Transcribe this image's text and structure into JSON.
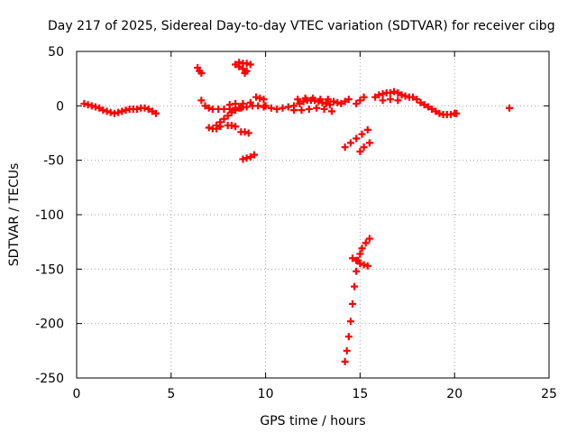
{
  "chart_data": {
    "type": "scatter",
    "title": "Day 217 of 2025, Sidereal Day-to-day VTEC variation (SDTVAR) for receiver cibg",
    "xlabel": "GPS time / hours",
    "ylabel": "SDTVAR / TECUs",
    "xlim": [
      0,
      25
    ],
    "ylim": [
      -250,
      50
    ],
    "xticks": [
      0,
      5,
      10,
      15,
      20,
      25
    ],
    "yticks": [
      -250,
      -200,
      -150,
      -100,
      -50,
      0,
      50
    ],
    "grid": true,
    "marker": "+",
    "color": "#ff0000",
    "series": [
      {
        "name": "SDTVAR",
        "points": [
          [
            0.4,
            2
          ],
          [
            0.6,
            1
          ],
          [
            0.8,
            0
          ],
          [
            1.0,
            -1
          ],
          [
            1.2,
            -2
          ],
          [
            1.4,
            -4
          ],
          [
            1.6,
            -5
          ],
          [
            1.8,
            -6
          ],
          [
            2.0,
            -7
          ],
          [
            2.2,
            -6
          ],
          [
            2.4,
            -5
          ],
          [
            2.6,
            -4
          ],
          [
            2.8,
            -3
          ],
          [
            3.0,
            -3
          ],
          [
            3.2,
            -3
          ],
          [
            3.4,
            -2
          ],
          [
            3.6,
            -2
          ],
          [
            3.8,
            -3
          ],
          [
            4.0,
            -5
          ],
          [
            4.2,
            -7
          ],
          [
            6.4,
            35
          ],
          [
            6.5,
            32
          ],
          [
            6.6,
            30
          ],
          [
            6.6,
            5
          ],
          [
            6.8,
            0
          ],
          [
            7.0,
            -2
          ],
          [
            7.2,
            -3
          ],
          [
            7.5,
            -3
          ],
          [
            7.8,
            -3
          ],
          [
            8.1,
            -3
          ],
          [
            8.4,
            -2
          ],
          [
            8.7,
            -2
          ],
          [
            9.0,
            -1
          ],
          [
            9.3,
            0
          ],
          [
            9.6,
            0
          ],
          [
            9.9,
            -1
          ],
          [
            7.0,
            -20
          ],
          [
            7.2,
            -21
          ],
          [
            7.4,
            -21
          ],
          [
            7.6,
            -19
          ],
          [
            7.4,
            -18
          ],
          [
            7.6,
            -15
          ],
          [
            7.8,
            -12
          ],
          [
            8.0,
            -9
          ],
          [
            8.2,
            -6
          ],
          [
            8.4,
            -4
          ],
          [
            8.6,
            -2
          ],
          [
            8.8,
            -1
          ],
          [
            8.0,
            -18
          ],
          [
            8.2,
            -18
          ],
          [
            8.4,
            -19
          ],
          [
            8.7,
            -24
          ],
          [
            8.9,
            -24
          ],
          [
            9.1,
            -25
          ],
          [
            8.4,
            38
          ],
          [
            8.6,
            36
          ],
          [
            8.8,
            34
          ],
          [
            9.0,
            32
          ],
          [
            8.6,
            40
          ],
          [
            8.8,
            39
          ],
          [
            9.0,
            39
          ],
          [
            9.2,
            38
          ],
          [
            8.9,
            30
          ],
          [
            8.1,
            1
          ],
          [
            8.4,
            2
          ],
          [
            8.8,
            2
          ],
          [
            9.2,
            3
          ],
          [
            9.5,
            8
          ],
          [
            9.7,
            7
          ],
          [
            9.9,
            6
          ],
          [
            8.8,
            -49
          ],
          [
            9.0,
            -48
          ],
          [
            9.2,
            -47
          ],
          [
            9.4,
            -45
          ],
          [
            10.0,
            0
          ],
          [
            10.3,
            -2
          ],
          [
            10.6,
            -3
          ],
          [
            10.9,
            -2
          ],
          [
            11.2,
            -1
          ],
          [
            11.5,
            0
          ],
          [
            11.8,
            2
          ],
          [
            12.0,
            4
          ],
          [
            12.2,
            5
          ],
          [
            12.4,
            5
          ],
          [
            12.6,
            5
          ],
          [
            12.8,
            4
          ],
          [
            13.0,
            3
          ],
          [
            13.2,
            2
          ],
          [
            13.4,
            1
          ],
          [
            11.5,
            -4
          ],
          [
            11.9,
            -4
          ],
          [
            12.3,
            -3
          ],
          [
            12.7,
            -2
          ],
          [
            13.1,
            -3
          ],
          [
            13.5,
            -5
          ],
          [
            11.7,
            6
          ],
          [
            12.1,
            7
          ],
          [
            12.5,
            7
          ],
          [
            12.9,
            6
          ],
          [
            13.3,
            6
          ],
          [
            13.6,
            4
          ],
          [
            13.8,
            3
          ],
          [
            14.0,
            2
          ],
          [
            14.2,
            4
          ],
          [
            14.4,
            6
          ],
          [
            14.8,
            2
          ],
          [
            15.0,
            5
          ],
          [
            15.2,
            8
          ],
          [
            14.2,
            -38
          ],
          [
            14.5,
            -34
          ],
          [
            14.8,
            -30
          ],
          [
            15.1,
            -26
          ],
          [
            15.4,
            -22
          ],
          [
            15.0,
            -42
          ],
          [
            15.2,
            -38
          ],
          [
            15.5,
            -34
          ],
          [
            14.2,
            -235
          ],
          [
            14.3,
            -225
          ],
          [
            14.4,
            -212
          ],
          [
            14.5,
            -198
          ],
          [
            14.6,
            -182
          ],
          [
            14.7,
            -166
          ],
          [
            14.8,
            -152
          ],
          [
            14.9,
            -142
          ],
          [
            15.0,
            -136
          ],
          [
            15.1,
            -131
          ],
          [
            15.3,
            -126
          ],
          [
            15.5,
            -122
          ],
          [
            14.6,
            -140
          ],
          [
            14.8,
            -142
          ],
          [
            15.0,
            -145
          ],
          [
            15.2,
            -146
          ],
          [
            15.4,
            -147
          ],
          [
            15.8,
            8
          ],
          [
            16.0,
            10
          ],
          [
            16.2,
            11
          ],
          [
            16.4,
            12
          ],
          [
            16.6,
            12
          ],
          [
            16.8,
            13
          ],
          [
            17.0,
            12
          ],
          [
            17.2,
            10
          ],
          [
            17.4,
            9
          ],
          [
            17.6,
            8
          ],
          [
            17.8,
            8
          ],
          [
            18.0,
            6
          ],
          [
            18.2,
            3
          ],
          [
            18.4,
            1
          ],
          [
            18.6,
            -1
          ],
          [
            18.8,
            -3
          ],
          [
            19.0,
            -5
          ],
          [
            19.2,
            -7
          ],
          [
            19.4,
            -8
          ],
          [
            19.6,
            -8
          ],
          [
            19.8,
            -8
          ],
          [
            20.0,
            -7
          ],
          [
            20.1,
            -7
          ],
          [
            16.2,
            5
          ],
          [
            16.6,
            6
          ],
          [
            17.0,
            5
          ],
          [
            22.9,
            -2
          ]
        ]
      }
    ]
  }
}
